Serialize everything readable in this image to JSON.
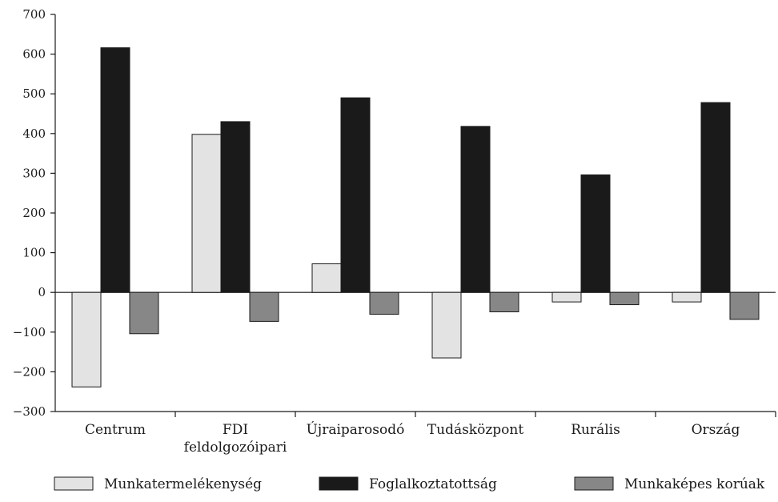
{
  "chart_data": {
    "type": "bar",
    "title": "",
    "xlabel": "",
    "ylabel": "",
    "ylim": [
      -300,
      700
    ],
    "yticks": [
      700,
      600,
      500,
      400,
      300,
      200,
      100,
      0,
      -100,
      -200,
      -300
    ],
    "ytick_labels": [
      "700",
      "600",
      "500",
      "400",
      "300",
      "200",
      "100",
      "0",
      "−100",
      "−200",
      "−300"
    ],
    "grid": false,
    "legend_position": "bottom",
    "categories": [
      [
        "Centrum"
      ],
      [
        "FDI",
        "feldolgozóipari"
      ],
      [
        "Újraiparosodó"
      ],
      [
        "Tudásközpont"
      ],
      [
        "Rurális"
      ],
      [
        "Ország"
      ]
    ],
    "series": [
      {
        "name": "Munkatermelékenység",
        "color": "#e3e3e3",
        "values": [
          -238,
          398,
          72,
          -165,
          -24,
          -24
        ]
      },
      {
        "name": "Foglalkoztatottság",
        "color": "#1a1a1a",
        "values": [
          616,
          430,
          490,
          418,
          296,
          478
        ]
      },
      {
        "name": "Munkaképes korúak",
        "color": "#878787",
        "values": [
          -104,
          -73,
          -55,
          -49,
          -31,
          -68
        ]
      }
    ]
  }
}
